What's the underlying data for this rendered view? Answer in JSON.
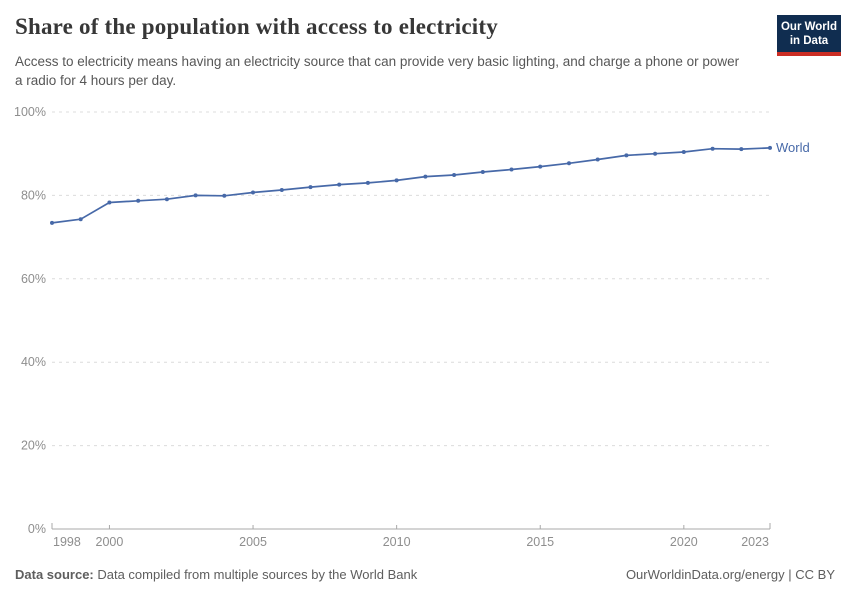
{
  "header": {
    "title": "Share of the population with access to electricity",
    "subtitle": "Access to electricity means having an electricity source that can provide very basic lighting, and charge a phone or power a radio for 4 hours per day.",
    "logo": {
      "line1": "Our World",
      "line2": "in Data"
    }
  },
  "chart_data": {
    "type": "line",
    "title": "Share of the population with access to electricity",
    "x": [
      1998,
      1999,
      2000,
      2001,
      2002,
      2003,
      2004,
      2005,
      2006,
      2007,
      2008,
      2009,
      2010,
      2011,
      2012,
      2013,
      2014,
      2015,
      2016,
      2017,
      2018,
      2019,
      2020,
      2021,
      2022,
      2023
    ],
    "series": [
      {
        "name": "World",
        "color": "#4769a8",
        "values": [
          73.4,
          74.3,
          78.3,
          78.7,
          79.1,
          80.0,
          79.9,
          80.7,
          81.3,
          82.0,
          82.6,
          83.0,
          83.6,
          84.5,
          84.9,
          85.6,
          86.2,
          86.9,
          87.7,
          88.6,
          89.6,
          90.0,
          90.4,
          91.2,
          91.1,
          91.4
        ]
      }
    ],
    "xlabel": "",
    "ylabel": "",
    "ylim": [
      0,
      100
    ],
    "y_ticks": [
      0,
      20,
      40,
      60,
      80,
      100
    ],
    "y_tick_suffix": "%",
    "x_ticks": [
      1998,
      2000,
      2005,
      2010,
      2015,
      2020,
      2023
    ],
    "grid": "horizontal-dashed",
    "legend_position": "end-of-line"
  },
  "colors": {
    "line": "#4769a8",
    "gridline": "#dcdcdc",
    "axis": "#a8a8a8",
    "tick_label": "#8e8e8e",
    "logo_navy": "#102D50",
    "logo_red": "#CB2D24"
  },
  "footer": {
    "source_label": "Data source:",
    "source_text": " Data compiled from multiple sources by the World Bank",
    "credit": "OurWorldinData.org/energy | CC BY"
  }
}
